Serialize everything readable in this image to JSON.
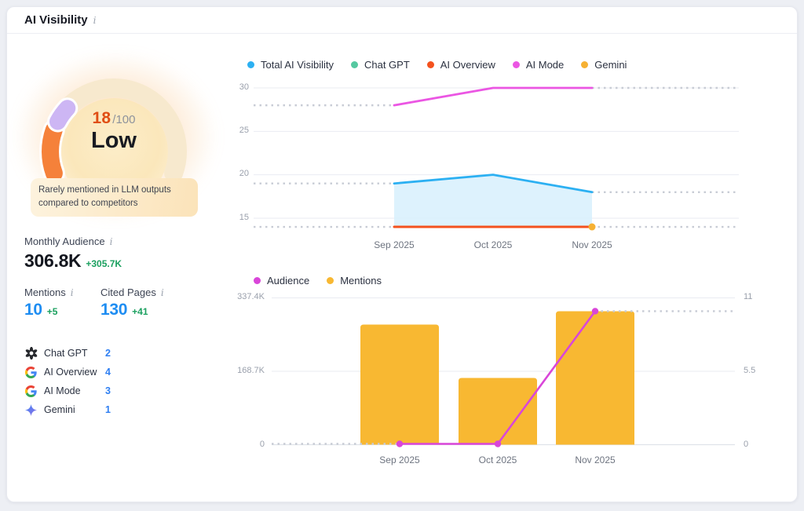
{
  "header": {
    "title": "AI Visibility",
    "info_icon": "i"
  },
  "gauge": {
    "score": "18",
    "denominator": "/100",
    "level": "Low",
    "tooltip": "Rarely mentioned in LLM outputs compared to competitors",
    "score_color": "#e04e14",
    "arc_color": "#f5813a",
    "marker_color": "#cdb6f4",
    "track_color": "#f7e9ce"
  },
  "stats": {
    "monthly_audience": {
      "label": "Monthly Audience",
      "value": "306.8K",
      "delta": "+305.7K"
    },
    "mentions": {
      "label": "Mentions",
      "value": "10",
      "delta": "+5"
    },
    "cited_pages": {
      "label": "Cited Pages",
      "value": "130",
      "delta": "+41"
    }
  },
  "platforms": [
    {
      "name": "Chat GPT",
      "value": "2",
      "icon": "chatgpt-icon"
    },
    {
      "name": "AI Overview",
      "value": "4",
      "icon": "google-icon"
    },
    {
      "name": "AI Mode",
      "value": "3",
      "icon": "google-icon"
    },
    {
      "name": "Gemini",
      "value": "1",
      "icon": "gemini-icon"
    }
  ],
  "visibility_chart": {
    "legend": [
      {
        "label": "Total AI Visibility",
        "color": "#2cb0f2"
      },
      {
        "label": "Chat GPT",
        "color": "#55c8a0"
      },
      {
        "label": "AI Overview",
        "color": "#f4521e"
      },
      {
        "label": "AI Mode",
        "color": "#eb56e3"
      },
      {
        "label": "Gemini",
        "color": "#f6b133"
      }
    ],
    "y_ticks": [
      "30",
      "25",
      "20",
      "15"
    ],
    "x_ticks": [
      "Sep 2025",
      "Oct 2025",
      "Nov 2025"
    ]
  },
  "audience_chart": {
    "legend": [
      {
        "label": "Audience",
        "color": "#d946d9"
      },
      {
        "label": "Mentions",
        "color": "#f8b832"
      }
    ],
    "left_ticks": [
      "337.4K",
      "168.7K",
      "0"
    ],
    "right_ticks": [
      "11",
      "5.5",
      "0"
    ],
    "x_ticks": [
      "Sep 2025",
      "Oct 2025",
      "Nov 2025"
    ]
  },
  "chart_data": [
    {
      "type": "line",
      "title": "AI Visibility by platform",
      "x": [
        "Sep 2025",
        "Oct 2025",
        "Nov 2025"
      ],
      "ylim": [
        13,
        31
      ],
      "yticks": [
        30,
        25,
        20,
        15
      ],
      "grid": true,
      "legend_position": "top",
      "series": [
        {
          "name": "Total AI Visibility",
          "color": "#2cb0f2",
          "values": [
            19,
            20,
            18
          ],
          "area": true,
          "area_color": "#d9f1fd"
        },
        {
          "name": "Chat GPT",
          "color": "#55c8a0",
          "values": [
            null,
            null,
            null
          ]
        },
        {
          "name": "AI Overview",
          "color": "#f4521e",
          "values": [
            14,
            14,
            14
          ]
        },
        {
          "name": "AI Mode",
          "color": "#eb56e3",
          "values": [
            28,
            30,
            30
          ]
        },
        {
          "name": "Gemini",
          "color": "#f6b133",
          "values": [
            null,
            null,
            14
          ]
        }
      ]
    },
    {
      "type": "bar",
      "title": "Audience and Mentions by month",
      "x": [
        "Sep 2025",
        "Oct 2025",
        "Nov 2025"
      ],
      "bars": {
        "name": "Mentions",
        "axis": "right",
        "color": "#f8b832",
        "values": [
          9,
          5,
          10
        ]
      },
      "line": {
        "name": "Audience",
        "axis": "left",
        "color": "#d946d9",
        "values": [
          1100,
          1100,
          306800
        ]
      },
      "left_axis": {
        "max": 337400,
        "ticks": [
          337400,
          168700,
          0
        ],
        "labels": [
          "337.4K",
          "168.7K",
          "0"
        ]
      },
      "right_axis": {
        "max": 11,
        "ticks": [
          11,
          5.5,
          0
        ],
        "labels": [
          "11",
          "5.5",
          "0"
        ]
      },
      "legend_position": "top"
    }
  ]
}
